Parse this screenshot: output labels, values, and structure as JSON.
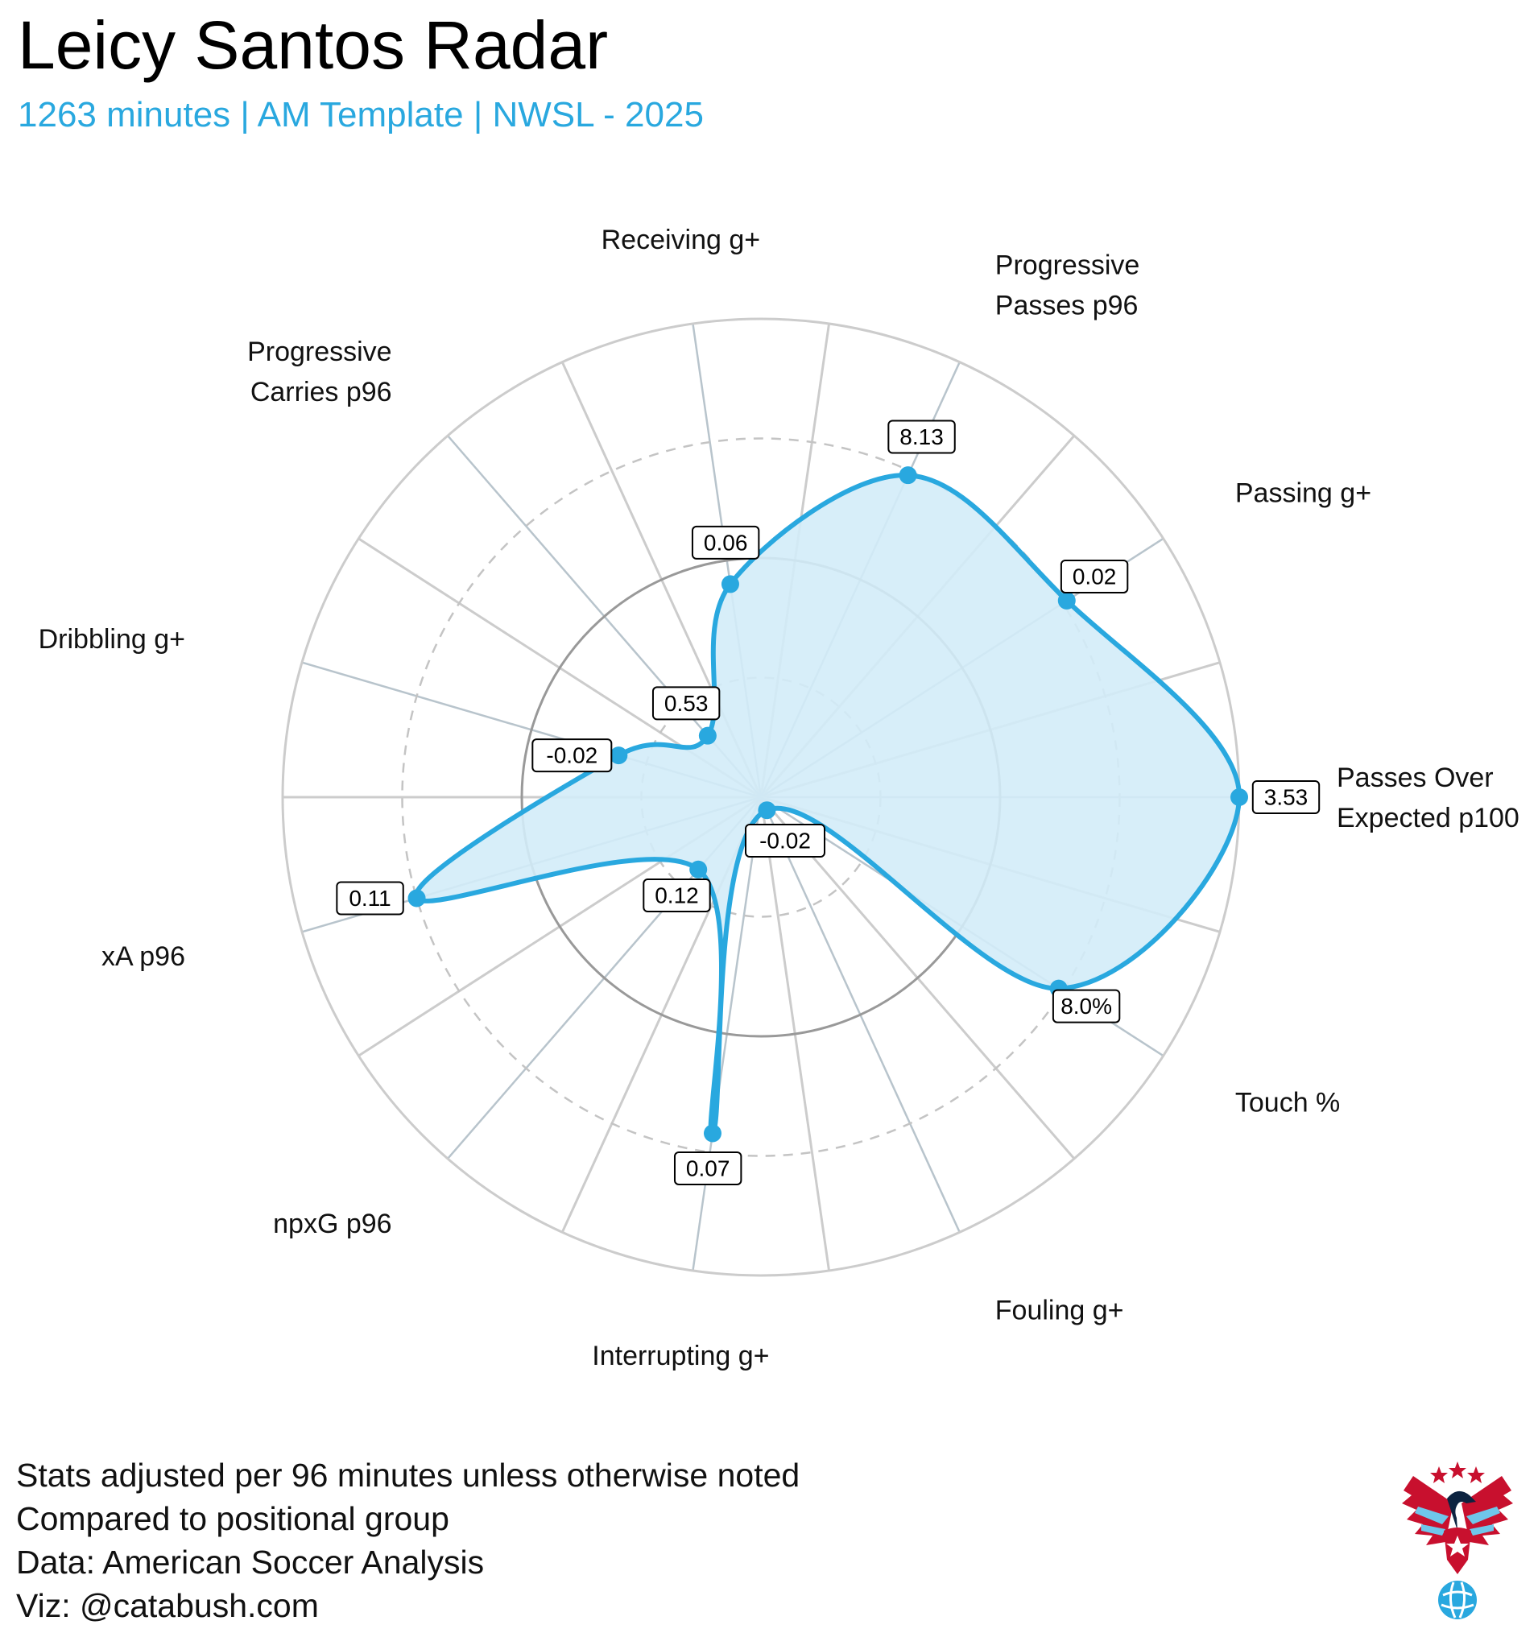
{
  "title": "Leicy Santos Radar",
  "subtitle": "1263 minutes | AM Template | NWSL - 2025",
  "footer": [
    "Stats adjusted per 96 minutes unless otherwise noted",
    "Compared to positional group",
    "Data: American Soccer Analysis",
    "Viz: @catabush.com"
  ],
  "logo": "eagle-soccer-crest-icon",
  "colors": {
    "accent": "#29a8df",
    "fill": "#d3ecf8",
    "grid": "#cccccc",
    "ring": "#999999"
  },
  "chart_data": {
    "type": "radar",
    "title": "Leicy Santos Radar",
    "subtitle": "1263 minutes | AM Template | NWSL - 2025",
    "scale": "percentile",
    "range": [
      0,
      100
    ],
    "rings": [
      25,
      50,
      75,
      100
    ],
    "axes": [
      {
        "label": [
          "Passes Over",
          "Expected p100"
        ],
        "value_label": "3.53",
        "percentile": 100
      },
      {
        "label": [
          "Passing g+"
        ],
        "value_label": "0.02",
        "percentile": 76
      },
      {
        "label": [
          "Progressive",
          "Passes p96"
        ],
        "value_label": "8.13",
        "percentile": 74
      },
      {
        "label": [
          "Receiving g+"
        ],
        "value_label": "0.06",
        "percentile": 45
      },
      {
        "label": [
          "Progressive",
          "Carries p96"
        ],
        "value_label": "0.53",
        "percentile": 17
      },
      {
        "label": [
          "Dribbling g+"
        ],
        "value_label": "-0.02",
        "percentile": 31
      },
      {
        "label": [
          "xA p96"
        ],
        "value_label": "0.11",
        "percentile": 75
      },
      {
        "label": [
          "npxG p96"
        ],
        "value_label": "0.12",
        "percentile": 20
      },
      {
        "label": [
          "Interrupting g+"
        ],
        "value_label": "0.07",
        "percentile": 71
      },
      {
        "label": [
          "Fouling g+"
        ],
        "value_label": "-0.02",
        "percentile": 3
      },
      {
        "label": [
          "Touch %"
        ],
        "value_label": "8.0%",
        "percentile": 74
      }
    ]
  }
}
